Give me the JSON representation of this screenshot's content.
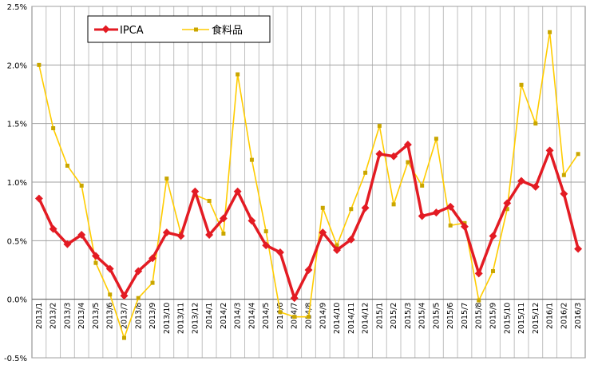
{
  "chart_data": {
    "type": "line",
    "title": "",
    "xlabel": "",
    "ylabel": "",
    "ylim": [
      -0.5,
      2.5
    ],
    "y_tick_labels": [
      "-0.5%",
      "0.0%",
      "0.5%",
      "1.0%",
      "1.5%",
      "2.0%",
      "2.5%"
    ],
    "y_tick_values": [
      -0.5,
      0.0,
      0.5,
      1.0,
      1.5,
      2.0,
      2.5
    ],
    "grid": true,
    "legend_position": "top-left",
    "categories": [
      "2013/1",
      "2013/2",
      "2013/3",
      "2013/4",
      "2013/5",
      "2013/6",
      "2013/7",
      "2013/8",
      "2013/9",
      "2013/10",
      "2013/11",
      "2013/12",
      "2014/1",
      "2014/2",
      "2014/3",
      "2014/4",
      "2014/5",
      "2014/6",
      "2014/7",
      "2014/8",
      "2014/9",
      "2014/10",
      "2014/11",
      "2014/12",
      "2015/1",
      "2015/2",
      "2015/3",
      "2015/4",
      "2015/5",
      "2015/6",
      "2015/7",
      "2015/8",
      "2015/9",
      "2015/10",
      "2015/11",
      "2015/12",
      "2016/1",
      "2016/2",
      "2016/3"
    ],
    "series": [
      {
        "name": "IPCA",
        "color": "#e31b23",
        "marker": "diamond",
        "values": [
          0.86,
          0.6,
          0.47,
          0.55,
          0.37,
          0.26,
          0.03,
          0.24,
          0.35,
          0.57,
          0.54,
          0.92,
          0.55,
          0.69,
          0.92,
          0.67,
          0.46,
          0.4,
          0.01,
          0.25,
          0.57,
          0.42,
          0.51,
          0.78,
          1.24,
          1.22,
          1.32,
          0.71,
          0.74,
          0.79,
          0.62,
          0.22,
          0.54,
          0.82,
          1.01,
          0.96,
          1.27,
          0.9,
          0.43
        ]
      },
      {
        "name": "食料品",
        "color": "#ffcc00",
        "marker": "square",
        "values": [
          2.0,
          1.46,
          1.14,
          0.97,
          0.31,
          0.04,
          -0.33,
          0.01,
          0.14,
          1.03,
          0.56,
          0.89,
          0.84,
          0.56,
          1.92,
          1.19,
          0.58,
          -0.11,
          -0.15,
          -0.15,
          0.78,
          0.46,
          0.77,
          1.08,
          1.48,
          0.81,
          1.17,
          0.97,
          1.37,
          0.63,
          0.65,
          -0.01,
          0.24,
          0.77,
          1.83,
          1.5,
          2.28,
          1.06,
          1.24
        ]
      }
    ]
  }
}
